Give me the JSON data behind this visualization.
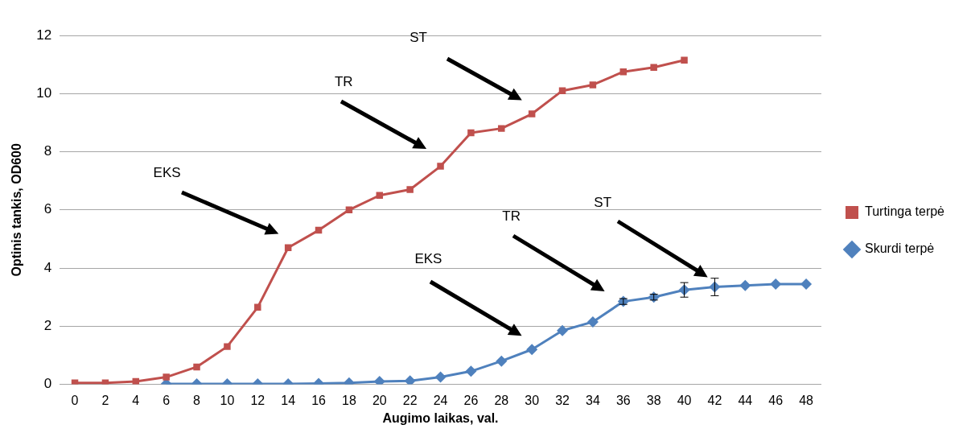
{
  "chart_data": {
    "type": "line",
    "xlabel": "Augimo laikas, val.",
    "ylabel": "Optinis tankis, OD600",
    "x": [
      0,
      2,
      4,
      6,
      8,
      10,
      12,
      14,
      16,
      18,
      20,
      22,
      24,
      26,
      28,
      30,
      32,
      34,
      36,
      38,
      40,
      42,
      44,
      46,
      48
    ],
    "series": [
      {
        "name": "Turtinga terpė",
        "color": "#c0504d",
        "marker": "square",
        "values": [
          0.05,
          0.05,
          0.1,
          0.25,
          0.6,
          1.3,
          2.65,
          4.7,
          5.3,
          6.0,
          6.5,
          6.7,
          7.5,
          8.65,
          8.8,
          9.3,
          10.1,
          10.3,
          10.75,
          10.9,
          11.15,
          null,
          null,
          null,
          null
        ]
      },
      {
        "name": "Skurdi terpė",
        "color": "#4f81bd",
        "marker": "diamond",
        "values": [
          null,
          null,
          null,
          0.02,
          0.02,
          0.02,
          0.02,
          0.02,
          0.03,
          0.05,
          0.1,
          0.12,
          0.25,
          0.45,
          0.8,
          1.2,
          1.85,
          2.15,
          2.85,
          3.0,
          3.25,
          3.35,
          3.4,
          3.45,
          3.45
        ],
        "errors": [
          null,
          null,
          null,
          null,
          null,
          null,
          null,
          null,
          null,
          null,
          null,
          null,
          null,
          null,
          null,
          null,
          null,
          null,
          0.1,
          0.1,
          0.25,
          0.3,
          null,
          null,
          null
        ]
      }
    ],
    "xlim": [
      -1,
      49
    ],
    "xticks": [
      0,
      2,
      4,
      6,
      8,
      10,
      12,
      14,
      16,
      18,
      20,
      22,
      24,
      26,
      28,
      30,
      32,
      34,
      36,
      38,
      40,
      42,
      44,
      46,
      48
    ],
    "ylim": [
      0,
      12
    ],
    "yticks": [
      0,
      2,
      4,
      6,
      8,
      10,
      12
    ],
    "grid": "y",
    "legend": "right",
    "line_style": "solid",
    "annotations": [
      "EKS",
      "TR",
      "ST",
      "EKS",
      "TR",
      "ST"
    ]
  }
}
